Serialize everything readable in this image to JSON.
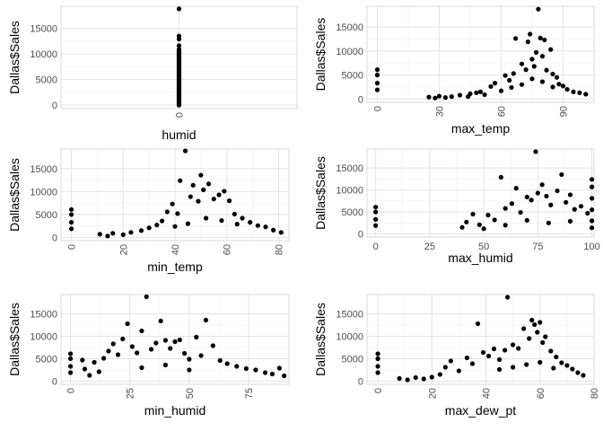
{
  "chart_data": [
    {
      "type": "scatter",
      "xlabel": "humid",
      "ylabel": "Dallas$Sales",
      "xlim": [
        -1,
        1
      ],
      "ylim": [
        -700,
        19300
      ],
      "x_ticks": [
        0
      ],
      "y_ticks": [
        0,
        5000,
        10000,
        15000
      ],
      "x_tick_rotation": 90,
      "grid": true,
      "points": [
        {
          "x": 0,
          "y": 18800
        },
        {
          "x": 0,
          "y": 13500
        },
        {
          "x": 0,
          "y": 12900
        },
        {
          "x": 0,
          "y": 11600
        },
        {
          "x": 0,
          "y": 10800
        },
        {
          "x": 0,
          "y": 10300
        },
        {
          "x": 0,
          "y": 9800
        },
        {
          "x": 0,
          "y": 9300
        },
        {
          "x": 0,
          "y": 8700
        },
        {
          "x": 0,
          "y": 8100
        },
        {
          "x": 0,
          "y": 7500
        },
        {
          "x": 0,
          "y": 6900
        },
        {
          "x": 0,
          "y": 6300
        },
        {
          "x": 0,
          "y": 5700
        },
        {
          "x": 0,
          "y": 5100
        },
        {
          "x": 0,
          "y": 4500
        },
        {
          "x": 0,
          "y": 3900
        },
        {
          "x": 0,
          "y": 3300
        },
        {
          "x": 0,
          "y": 2700
        },
        {
          "x": 0,
          "y": 2100
        },
        {
          "x": 0,
          "y": 1600
        },
        {
          "x": 0,
          "y": 1100
        },
        {
          "x": 0,
          "y": 700
        },
        {
          "x": 0,
          "y": 300
        },
        {
          "x": 0,
          "y": 0
        }
      ]
    },
    {
      "type": "scatter",
      "xlabel": "max_temp",
      "ylabel": "Dallas$Sales",
      "xlim": [
        -5,
        105
      ],
      "ylim": [
        -700,
        19300
      ],
      "x_ticks": [
        0,
        30,
        60,
        90
      ],
      "y_ticks": [
        0,
        5000,
        10000,
        15000
      ],
      "x_tick_rotation": 90,
      "grid": true,
      "points": [
        {
          "x": 0,
          "y": 6100
        },
        {
          "x": 0,
          "y": 5000
        },
        {
          "x": 0,
          "y": 3300
        },
        {
          "x": 0,
          "y": 1900
        },
        {
          "x": 25,
          "y": 400
        },
        {
          "x": 28,
          "y": 200
        },
        {
          "x": 30,
          "y": 600
        },
        {
          "x": 33,
          "y": 300
        },
        {
          "x": 36,
          "y": 500
        },
        {
          "x": 40,
          "y": 800
        },
        {
          "x": 44,
          "y": 500
        },
        {
          "x": 48,
          "y": 1300
        },
        {
          "x": 52,
          "y": 900
        },
        {
          "x": 55,
          "y": 2600
        },
        {
          "x": 57,
          "y": 3300
        },
        {
          "x": 60,
          "y": 1700
        },
        {
          "x": 62,
          "y": 4900
        },
        {
          "x": 64,
          "y": 3900
        },
        {
          "x": 66,
          "y": 5300
        },
        {
          "x": 67,
          "y": 12600
        },
        {
          "x": 70,
          "y": 7300
        },
        {
          "x": 72,
          "y": 6100
        },
        {
          "x": 73,
          "y": 11900
        },
        {
          "x": 74,
          "y": 13500
        },
        {
          "x": 75,
          "y": 8300
        },
        {
          "x": 76,
          "y": 6800
        },
        {
          "x": 77,
          "y": 9700
        },
        {
          "x": 78,
          "y": 18700
        },
        {
          "x": 79,
          "y": 12700
        },
        {
          "x": 80,
          "y": 8900
        },
        {
          "x": 81,
          "y": 12300
        },
        {
          "x": 82,
          "y": 6000
        },
        {
          "x": 84,
          "y": 10300
        },
        {
          "x": 85,
          "y": 5200
        },
        {
          "x": 87,
          "y": 4500
        },
        {
          "x": 88,
          "y": 3100
        },
        {
          "x": 90,
          "y": 2700
        },
        {
          "x": 92,
          "y": 2000
        },
        {
          "x": 95,
          "y": 1500
        },
        {
          "x": 98,
          "y": 1300
        },
        {
          "x": 101,
          "y": 1000
        },
        {
          "x": 65,
          "y": 2400
        },
        {
          "x": 70,
          "y": 3000
        },
        {
          "x": 75,
          "y": 4200
        },
        {
          "x": 80,
          "y": 3600
        },
        {
          "x": 85,
          "y": 2500
        },
        {
          "x": 50,
          "y": 1500
        },
        {
          "x": 45,
          "y": 1100
        }
      ]
    },
    {
      "type": "scatter",
      "xlabel": "min_temp",
      "ylabel": "Dallas$Sales",
      "xlim": [
        -4,
        84
      ],
      "ylim": [
        -700,
        19300
      ],
      "x_ticks": [
        0,
        20,
        40,
        60,
        80
      ],
      "y_ticks": [
        0,
        5000,
        10000,
        15000
      ],
      "x_tick_rotation": 90,
      "grid": true,
      "points": [
        {
          "x": 0,
          "y": 6100
        },
        {
          "x": 0,
          "y": 5000
        },
        {
          "x": 0,
          "y": 3300
        },
        {
          "x": 0,
          "y": 1900
        },
        {
          "x": 11,
          "y": 700
        },
        {
          "x": 14,
          "y": 300
        },
        {
          "x": 16,
          "y": 900
        },
        {
          "x": 20,
          "y": 600
        },
        {
          "x": 23,
          "y": 1100
        },
        {
          "x": 27,
          "y": 1500
        },
        {
          "x": 30,
          "y": 2100
        },
        {
          "x": 33,
          "y": 2700
        },
        {
          "x": 35,
          "y": 3600
        },
        {
          "x": 37,
          "y": 5600
        },
        {
          "x": 39,
          "y": 7300
        },
        {
          "x": 41,
          "y": 5200
        },
        {
          "x": 42,
          "y": 12400
        },
        {
          "x": 44,
          "y": 18900
        },
        {
          "x": 46,
          "y": 8900
        },
        {
          "x": 47,
          "y": 11400
        },
        {
          "x": 49,
          "y": 7900
        },
        {
          "x": 50,
          "y": 13600
        },
        {
          "x": 51,
          "y": 10400
        },
        {
          "x": 53,
          "y": 11700
        },
        {
          "x": 55,
          "y": 8400
        },
        {
          "x": 57,
          "y": 9300
        },
        {
          "x": 59,
          "y": 10100
        },
        {
          "x": 61,
          "y": 8000
        },
        {
          "x": 63,
          "y": 5100
        },
        {
          "x": 66,
          "y": 4200
        },
        {
          "x": 69,
          "y": 3300
        },
        {
          "x": 72,
          "y": 2600
        },
        {
          "x": 75,
          "y": 2300
        },
        {
          "x": 78,
          "y": 1600
        },
        {
          "x": 81,
          "y": 1100
        },
        {
          "x": 45,
          "y": 3000
        },
        {
          "x": 52,
          "y": 4200
        },
        {
          "x": 58,
          "y": 3700
        },
        {
          "x": 64,
          "y": 2900
        },
        {
          "x": 40,
          "y": 2400
        }
      ]
    },
    {
      "type": "scatter",
      "xlabel": "max_humid",
      "ylabel": "Dallas$Sales",
      "xlim": [
        -4,
        101
      ],
      "ylim": [
        -700,
        19300
      ],
      "x_ticks": [
        0,
        25,
        50,
        75,
        100
      ],
      "y_ticks": [
        0,
        5000,
        10000,
        15000
      ],
      "x_tick_rotation": 0,
      "grid": true,
      "points": [
        {
          "x": 0,
          "y": 6100
        },
        {
          "x": 0,
          "y": 5000
        },
        {
          "x": 0,
          "y": 3300
        },
        {
          "x": 0,
          "y": 1900
        },
        {
          "x": 40,
          "y": 1500
        },
        {
          "x": 42,
          "y": 2700
        },
        {
          "x": 45,
          "y": 4500
        },
        {
          "x": 48,
          "y": 2100
        },
        {
          "x": 52,
          "y": 4300
        },
        {
          "x": 55,
          "y": 3200
        },
        {
          "x": 58,
          "y": 12900
        },
        {
          "x": 60,
          "y": 5800
        },
        {
          "x": 63,
          "y": 6900
        },
        {
          "x": 65,
          "y": 10400
        },
        {
          "x": 67,
          "y": 4900
        },
        {
          "x": 70,
          "y": 8400
        },
        {
          "x": 72,
          "y": 7700
        },
        {
          "x": 74,
          "y": 18700
        },
        {
          "x": 75,
          "y": 9300
        },
        {
          "x": 77,
          "y": 11200
        },
        {
          "x": 79,
          "y": 8600
        },
        {
          "x": 81,
          "y": 6600
        },
        {
          "x": 84,
          "y": 9800
        },
        {
          "x": 86,
          "y": 13500
        },
        {
          "x": 88,
          "y": 7200
        },
        {
          "x": 90,
          "y": 8900
        },
        {
          "x": 92,
          "y": 5600
        },
        {
          "x": 95,
          "y": 6300
        },
        {
          "x": 98,
          "y": 4700
        },
        {
          "x": 100,
          "y": 12400
        },
        {
          "x": 100,
          "y": 10700
        },
        {
          "x": 100,
          "y": 8100
        },
        {
          "x": 100,
          "y": 5500
        },
        {
          "x": 100,
          "y": 3000
        },
        {
          "x": 100,
          "y": 1400
        },
        {
          "x": 70,
          "y": 3100
        },
        {
          "x": 80,
          "y": 2500
        },
        {
          "x": 90,
          "y": 2900
        },
        {
          "x": 60,
          "y": 2000
        },
        {
          "x": 50,
          "y": 1200
        }
      ]
    },
    {
      "type": "scatter",
      "xlabel": "min_humid",
      "ylabel": "Dallas$Sales",
      "xlim": [
        -4,
        92
      ],
      "ylim": [
        -700,
        19300
      ],
      "x_ticks": [
        0,
        25,
        50,
        75
      ],
      "y_ticks": [
        0,
        5000,
        10000,
        15000
      ],
      "x_tick_rotation": 90,
      "grid": true,
      "points": [
        {
          "x": 0,
          "y": 6100
        },
        {
          "x": 0,
          "y": 5000
        },
        {
          "x": 0,
          "y": 3300
        },
        {
          "x": 0,
          "y": 1900
        },
        {
          "x": 5,
          "y": 4700
        },
        {
          "x": 6,
          "y": 2700
        },
        {
          "x": 8,
          "y": 1300
        },
        {
          "x": 10,
          "y": 4200
        },
        {
          "x": 12,
          "y": 2100
        },
        {
          "x": 14,
          "y": 5100
        },
        {
          "x": 16,
          "y": 6700
        },
        {
          "x": 18,
          "y": 8300
        },
        {
          "x": 20,
          "y": 5900
        },
        {
          "x": 22,
          "y": 9400
        },
        {
          "x": 24,
          "y": 12800
        },
        {
          "x": 26,
          "y": 7700
        },
        {
          "x": 28,
          "y": 6300
        },
        {
          "x": 30,
          "y": 11200
        },
        {
          "x": 32,
          "y": 18800
        },
        {
          "x": 34,
          "y": 7100
        },
        {
          "x": 36,
          "y": 8500
        },
        {
          "x": 38,
          "y": 13400
        },
        {
          "x": 40,
          "y": 9100
        },
        {
          "x": 42,
          "y": 7300
        },
        {
          "x": 44,
          "y": 8800
        },
        {
          "x": 46,
          "y": 9200
        },
        {
          "x": 48,
          "y": 6200
        },
        {
          "x": 50,
          "y": 4900
        },
        {
          "x": 53,
          "y": 9800
        },
        {
          "x": 55,
          "y": 5700
        },
        {
          "x": 57,
          "y": 13600
        },
        {
          "x": 60,
          "y": 7900
        },
        {
          "x": 63,
          "y": 4600
        },
        {
          "x": 66,
          "y": 3900
        },
        {
          "x": 70,
          "y": 3300
        },
        {
          "x": 74,
          "y": 2800
        },
        {
          "x": 78,
          "y": 2500
        },
        {
          "x": 82,
          "y": 1900
        },
        {
          "x": 85,
          "y": 1600
        },
        {
          "x": 88,
          "y": 2900
        },
        {
          "x": 90,
          "y": 1200
        },
        {
          "x": 30,
          "y": 3000
        },
        {
          "x": 40,
          "y": 3600
        },
        {
          "x": 50,
          "y": 2500
        }
      ]
    },
    {
      "type": "scatter",
      "xlabel": "max_dew_pt",
      "ylabel": "Dallas$Sales",
      "xlim": [
        -4,
        80
      ],
      "ylim": [
        -700,
        19300
      ],
      "x_ticks": [
        0,
        20,
        40,
        60,
        80
      ],
      "y_ticks": [
        0,
        5000,
        10000,
        15000
      ],
      "x_tick_rotation": 90,
      "grid": true,
      "points": [
        {
          "x": 0,
          "y": 6100
        },
        {
          "x": 0,
          "y": 5000
        },
        {
          "x": 0,
          "y": 3300
        },
        {
          "x": 0,
          "y": 1900
        },
        {
          "x": 8,
          "y": 600
        },
        {
          "x": 11,
          "y": 300
        },
        {
          "x": 14,
          "y": 800
        },
        {
          "x": 17,
          "y": 500
        },
        {
          "x": 20,
          "y": 900
        },
        {
          "x": 23,
          "y": 1500
        },
        {
          "x": 25,
          "y": 3100
        },
        {
          "x": 27,
          "y": 4500
        },
        {
          "x": 30,
          "y": 2300
        },
        {
          "x": 33,
          "y": 5200
        },
        {
          "x": 35,
          "y": 3900
        },
        {
          "x": 37,
          "y": 12800
        },
        {
          "x": 39,
          "y": 6400
        },
        {
          "x": 41,
          "y": 5600
        },
        {
          "x": 43,
          "y": 7200
        },
        {
          "x": 45,
          "y": 4800
        },
        {
          "x": 47,
          "y": 6900
        },
        {
          "x": 48,
          "y": 18700
        },
        {
          "x": 50,
          "y": 8100
        },
        {
          "x": 52,
          "y": 7300
        },
        {
          "x": 54,
          "y": 11700
        },
        {
          "x": 56,
          "y": 9500
        },
        {
          "x": 57,
          "y": 13600
        },
        {
          "x": 58,
          "y": 12600
        },
        {
          "x": 59,
          "y": 10900
        },
        {
          "x": 60,
          "y": 13100
        },
        {
          "x": 61,
          "y": 8600
        },
        {
          "x": 62,
          "y": 9900
        },
        {
          "x": 64,
          "y": 6700
        },
        {
          "x": 66,
          "y": 5400
        },
        {
          "x": 68,
          "y": 4100
        },
        {
          "x": 70,
          "y": 3500
        },
        {
          "x": 72,
          "y": 2700
        },
        {
          "x": 74,
          "y": 1900
        },
        {
          "x": 76,
          "y": 1300
        },
        {
          "x": 50,
          "y": 3100
        },
        {
          "x": 55,
          "y": 3700
        },
        {
          "x": 60,
          "y": 4200
        },
        {
          "x": 45,
          "y": 2600
        },
        {
          "x": 65,
          "y": 2900
        }
      ]
    }
  ]
}
